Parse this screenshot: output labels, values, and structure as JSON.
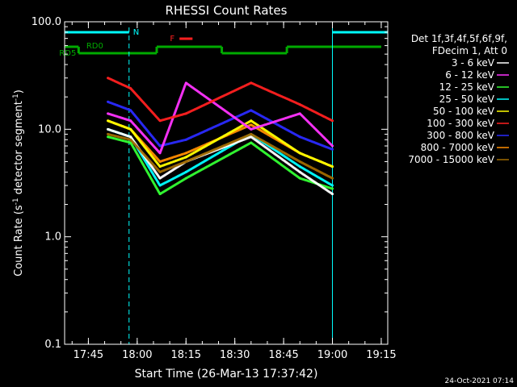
{
  "chart_data": {
    "type": "line",
    "title": "RHESSI Count Rates",
    "xlabel": "Start Time (26-Mar-13 17:37:42)",
    "ylabel_parts": [
      "Count Rate (s",
      "-1",
      " detector segment",
      "-1",
      ")"
    ],
    "y_scale": "log",
    "ylim": [
      0.1,
      100.0
    ],
    "xlim": [
      "17:37:42",
      "19:17:00"
    ],
    "x_ticks": [
      "17:45",
      "18:00",
      "18:15",
      "18:30",
      "18:45",
      "19:00",
      "19:15"
    ],
    "y_ticks": [
      "0.1",
      "1.0",
      "10.0",
      "100.0"
    ],
    "grid": false,
    "legend_placement": "right",
    "legend_header": [
      "Det 1f,3f,4f,5f,6f,9f,",
      "FDecim 1, Att 0"
    ],
    "series": [
      {
        "name": "3 - 6 keV",
        "color": "#ffffff",
        "values": [
          10,
          8.5,
          3.5,
          5,
          8.5,
          4,
          2.5
        ]
      },
      {
        "name": "6 - 12 keV",
        "color": "#ff33ff",
        "values": [
          14,
          12,
          6,
          27,
          10,
          14,
          7
        ]
      },
      {
        "name": "12 - 25 keV",
        "color": "#33ff33",
        "values": [
          8.5,
          7.5,
          2.5,
          3.5,
          7.5,
          3.5,
          2.8
        ]
      },
      {
        "name": "25 - 50 keV",
        "color": "#00ffff",
        "values": [
          10,
          8.5,
          3,
          4,
          9,
          4.5,
          3
        ]
      },
      {
        "name": "50 - 100 keV",
        "color": "#ffff00",
        "values": [
          12,
          10,
          4.5,
          5.5,
          12,
          6,
          4.5
        ]
      },
      {
        "name": "100 - 300 keV",
        "color": "#ff2020",
        "values": [
          30,
          24,
          12,
          14,
          27,
          17,
          12
        ]
      },
      {
        "name": "300 - 800 keV",
        "color": "#2a2aff",
        "values": [
          18,
          15,
          7,
          8,
          15,
          8.5,
          6.5
        ]
      },
      {
        "name": "800 - 7000 keV",
        "color": "#ff8c00",
        "values": [
          12,
          10,
          5,
          6,
          11,
          6,
          4.5
        ]
      },
      {
        "name": "7000 - 15000 keV",
        "color": "#a06a00",
        "values": [
          9,
          8,
          4,
          5,
          9,
          5,
          3.5
        ]
      }
    ],
    "series_x": [
      "17:51",
      "17:58",
      "18:07",
      "18:15",
      "18:35",
      "18:50",
      "19:00"
    ],
    "annotations": [
      {
        "label": "N",
        "color": "#00ffff"
      },
      {
        "label": "RD0",
        "color": "#00aa00"
      },
      {
        "label": "RD5",
        "color": "#00aa00"
      },
      {
        "label": "F",
        "color": "#ff2020"
      }
    ],
    "intervals": {
      "night": {
        "color": "#00ffff",
        "segments": [
          [
            "17:37:42",
            "17:57:30"
          ],
          [
            "19:00",
            "19:17"
          ]
        ]
      },
      "decim_rd0": {
        "color": "#00aa00",
        "segments": [
          [
            "17:37:42",
            "17:42"
          ]
        ]
      },
      "decim_rd5": {
        "color": "#00aa00",
        "segments": [
          [
            "17:42",
            "18:06"
          ],
          [
            "18:26",
            "18:46"
          ]
        ]
      },
      "decim_upper": {
        "color": "#00aa00",
        "segments": [
          [
            "18:06",
            "18:26"
          ],
          [
            "18:46",
            "19:15"
          ]
        ]
      },
      "flare": {
        "color": "#ff2020",
        "segments": [
          [
            "18:13",
            "18:17"
          ]
        ]
      }
    },
    "footer_date": "24-Oct-2021 07:14"
  }
}
